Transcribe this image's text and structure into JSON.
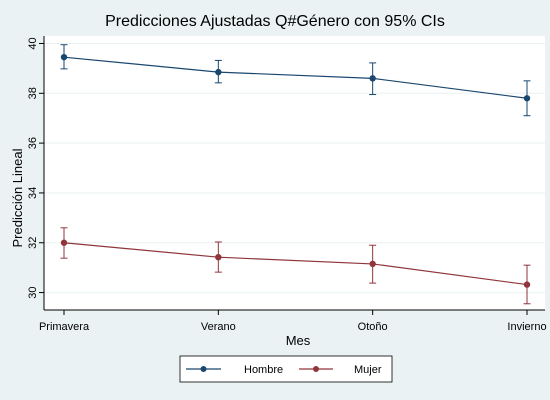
{
  "chart_data": {
    "type": "line",
    "title": "Predicciones Ajustadas Q#Género con 95% CIs",
    "xlabel": "Mes",
    "ylabel": "Predicción Lineal",
    "categories": [
      "Primavera",
      "Verano",
      "Otoño",
      "Invierno"
    ],
    "ylim": [
      29.3,
      40.3
    ],
    "yticks": [
      30,
      32,
      34,
      36,
      38,
      40
    ],
    "grid": true,
    "legend_position": "bottom",
    "series": [
      {
        "name": "Hombre",
        "color": "#1a476f",
        "values": [
          39.45,
          38.85,
          38.6,
          37.8
        ],
        "ci_low": [
          38.98,
          38.42,
          37.95,
          37.1
        ],
        "ci_high": [
          39.95,
          39.32,
          39.22,
          38.5
        ]
      },
      {
        "name": "Mujer",
        "color": "#90353b",
        "values": [
          32.0,
          31.42,
          31.15,
          30.32
        ],
        "ci_low": [
          31.38,
          30.82,
          30.38,
          29.55
        ],
        "ci_high": [
          32.6,
          32.03,
          31.9,
          31.1
        ]
      }
    ]
  }
}
